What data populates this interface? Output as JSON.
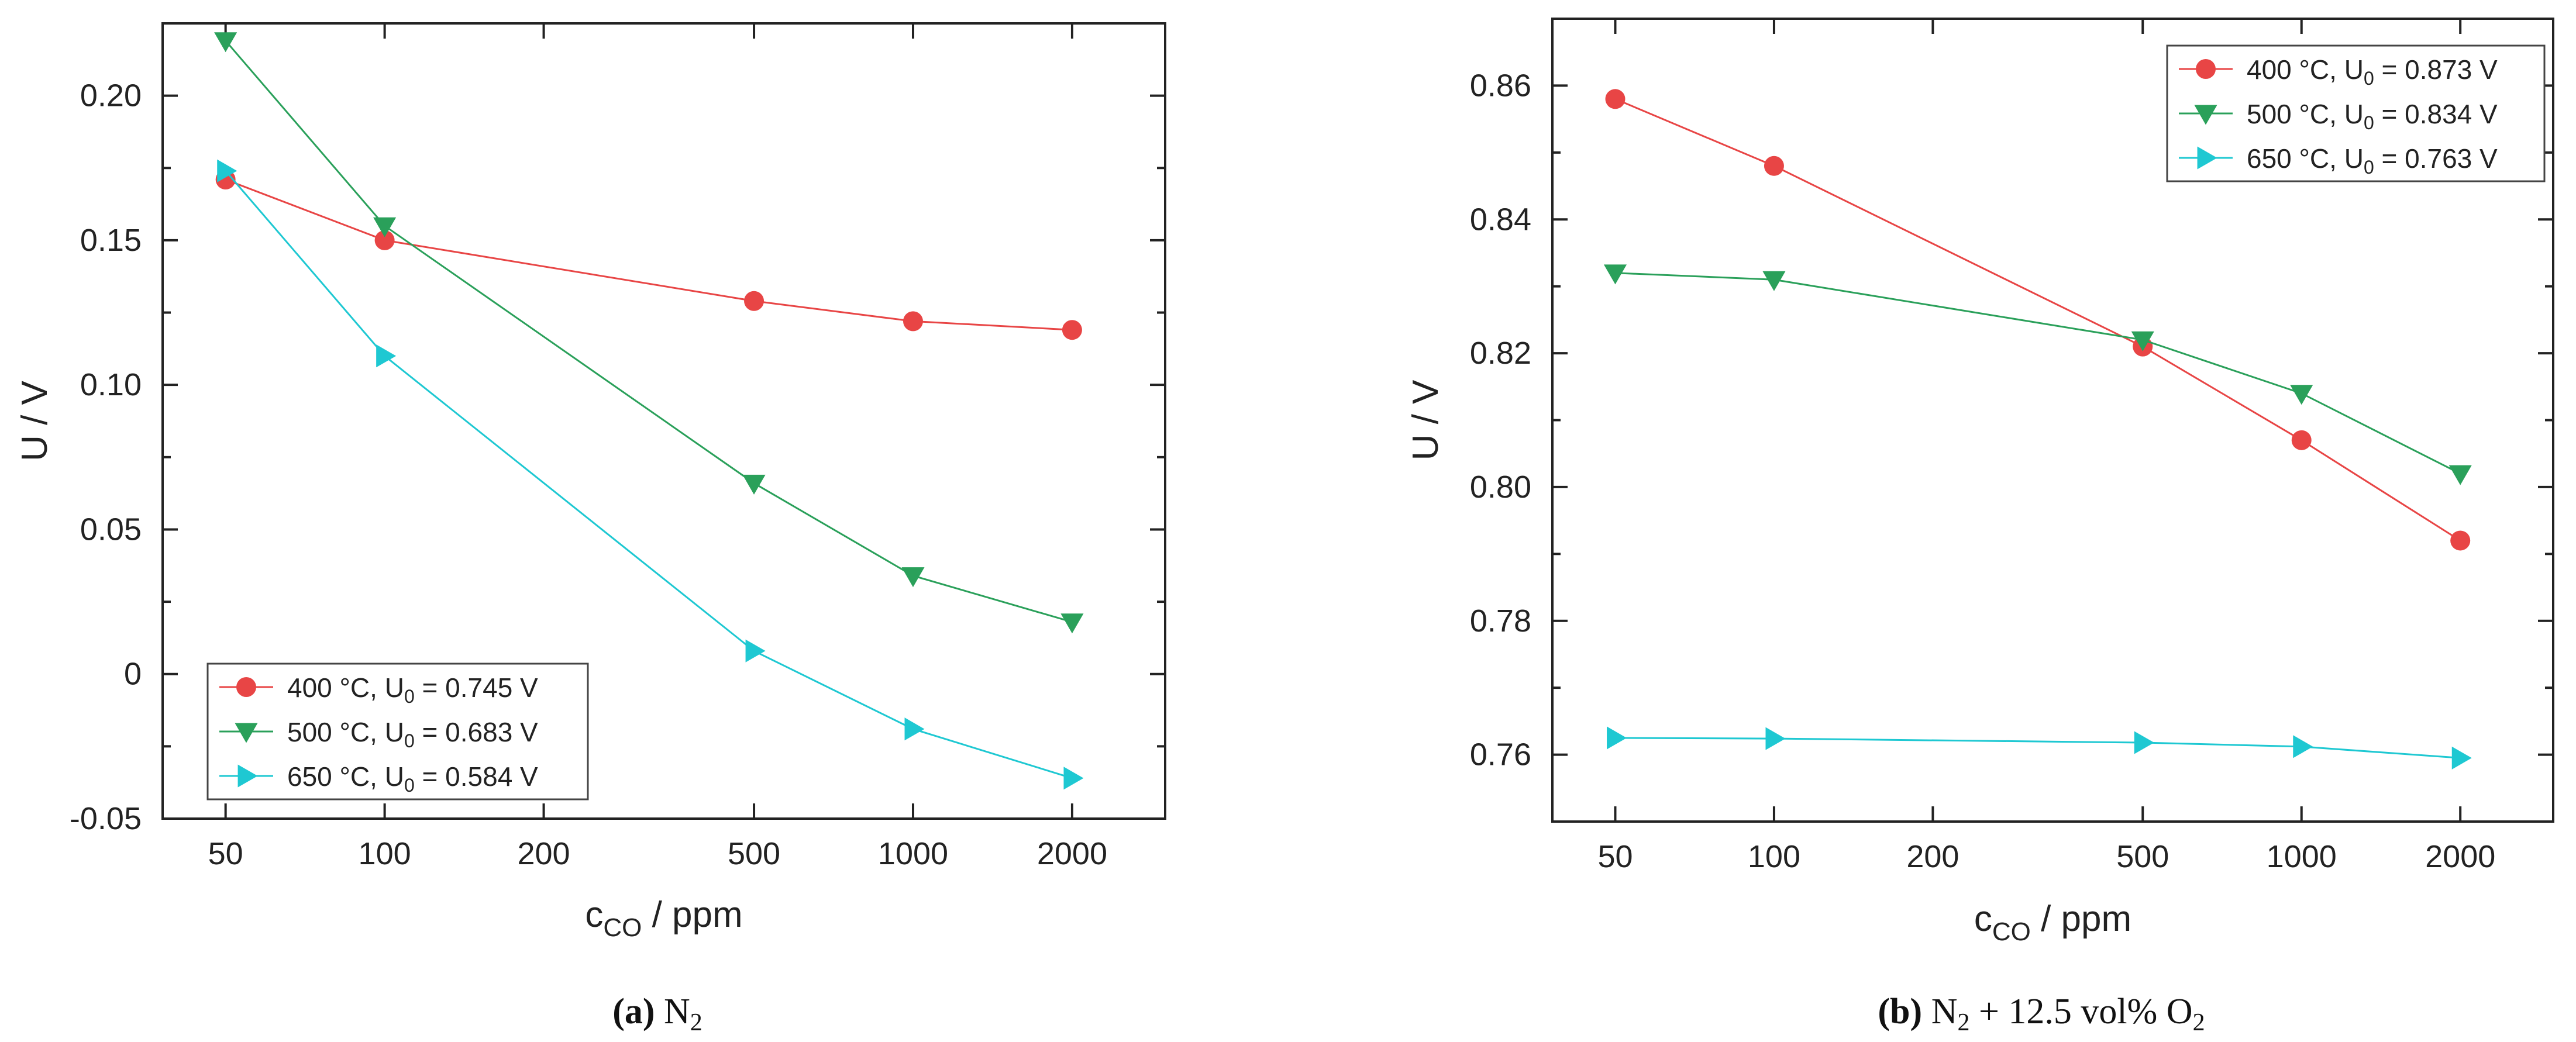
{
  "figure": {
    "panels": [
      {
        "label": "(a)",
        "caption": "N2",
        "caption_sub": "2",
        "caption_base": "N",
        "caption_rest": ""
      },
      {
        "label": "(b)",
        "caption": "N2 + 12.5 vol% O2",
        "caption_sub": "2",
        "caption_base": "N",
        "caption_rest": " + 12.5 vol% O",
        "caption_sub2": "2"
      }
    ]
  },
  "chart_data": [
    {
      "type": "line",
      "title": "",
      "xlabel": "c_CO / ppm",
      "xlabel_base": "c",
      "xlabel_sub": "CO",
      "xlabel_rest": " / ppm",
      "ylabel": "U / V",
      "xscale": "log",
      "xlim": [
        38,
        3000
      ],
      "ylim": [
        -0.05,
        0.225
      ],
      "xticks": [
        50,
        100,
        200,
        500,
        1000,
        2000
      ],
      "xtick_labels": [
        "50",
        "100",
        "200",
        "500",
        "1000",
        "2000"
      ],
      "yticks": [
        -0.05,
        0,
        0.05,
        0.1,
        0.15,
        0.2
      ],
      "ytick_labels": [
        "-0.05",
        "0",
        "0.05",
        "0.10",
        "0.15",
        "0.20"
      ],
      "legend_position": "bottom-left",
      "series": [
        {
          "name": "400 °C, U0 = 0.745 V",
          "label_pre": "400 °C, U",
          "label_sub": "0",
          "label_post": " = 0.745 V",
          "marker": "circle",
          "color": "#e84545",
          "x": [
            50,
            100,
            500,
            1000,
            2000
          ],
          "values": [
            0.171,
            0.15,
            0.129,
            0.122,
            0.119
          ]
        },
        {
          "name": "500 °C, U0 = 0.683 V",
          "label_pre": "500 °C, U",
          "label_sub": "0",
          "label_post": " = 0.683 V",
          "marker": "triangle-down",
          "color": "#2aa05a",
          "x": [
            50,
            100,
            500,
            1000,
            2000
          ],
          "values": [
            0.219,
            0.155,
            0.066,
            0.034,
            0.018
          ]
        },
        {
          "name": "650 °C, U0 = 0.584 V",
          "label_pre": "650 °C, U",
          "label_sub": "0",
          "label_post": " = 0.584 V",
          "marker": "triangle-right",
          "color": "#1ec8d2",
          "x": [
            50,
            100,
            500,
            1000,
            2000
          ],
          "values": [
            0.174,
            0.11,
            0.008,
            -0.019,
            -0.036
          ]
        }
      ]
    },
    {
      "type": "line",
      "title": "",
      "xlabel": "c_CO / ppm",
      "xlabel_base": "c",
      "xlabel_sub": "CO",
      "xlabel_rest": " / ppm",
      "ylabel": "U / V",
      "xscale": "log",
      "xlim": [
        38,
        3000
      ],
      "ylim": [
        0.75,
        0.87
      ],
      "xticks": [
        50,
        100,
        200,
        500,
        1000,
        2000
      ],
      "xtick_labels": [
        "50",
        "100",
        "200",
        "500",
        "1000",
        "2000"
      ],
      "yticks": [
        0.76,
        0.78,
        0.8,
        0.82,
        0.84,
        0.86
      ],
      "ytick_labels": [
        "0.76",
        "0.78",
        "0.80",
        "0.82",
        "0.84",
        "0.86"
      ],
      "legend_position": "top-right",
      "series": [
        {
          "name": "400 °C, U0 = 0.873 V",
          "label_pre": "400 °C, U",
          "label_sub": "0",
          "label_post": " = 0.873 V",
          "marker": "circle",
          "color": "#e84545",
          "x": [
            50,
            100,
            500,
            1000,
            2000
          ],
          "values": [
            0.858,
            0.848,
            0.821,
            0.807,
            0.792
          ]
        },
        {
          "name": "500 °C, U0 = 0.834 V",
          "label_pre": "500 °C, U",
          "label_sub": "0",
          "label_post": " = 0.834 V",
          "marker": "triangle-down",
          "color": "#2aa05a",
          "x": [
            50,
            100,
            500,
            1000,
            2000
          ],
          "values": [
            0.832,
            0.831,
            0.822,
            0.814,
            0.802
          ]
        },
        {
          "name": "650 °C, U0 = 0.763 V",
          "label_pre": "650 °C, U",
          "label_sub": "0",
          "label_post": " = 0.763 V",
          "marker": "triangle-right",
          "color": "#1ec8d2",
          "x": [
            50,
            100,
            500,
            1000,
            2000
          ],
          "values": [
            0.7625,
            0.7624,
            0.7618,
            0.7612,
            0.7595
          ]
        }
      ]
    }
  ]
}
